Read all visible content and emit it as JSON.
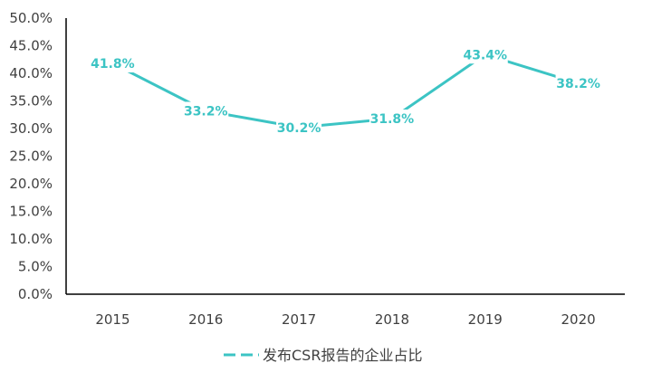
{
  "chart_data": {
    "type": "line",
    "categories": [
      "2015",
      "2016",
      "2017",
      "2018",
      "2019",
      "2020"
    ],
    "series": [
      {
        "name": "发布CSR报告的企业占比",
        "values": [
          41.8,
          33.2,
          30.2,
          31.8,
          43.4,
          38.2
        ],
        "labels": [
          "41.8%",
          "33.2%",
          "30.2%",
          "31.8%",
          "43.4%",
          "38.2%"
        ]
      }
    ],
    "y_ticks": [
      "0.0%",
      "5.0%",
      "10.0%",
      "15.0%",
      "20.0%",
      "25.0%",
      "30.0%",
      "35.0%",
      "40.0%",
      "45.0%",
      "50.0%"
    ],
    "ylim": [
      0,
      50
    ],
    "grid": false,
    "legend_position": "bottom",
    "colors": {
      "series": "#3cc4c4",
      "axis": "#000000",
      "text": "#404040"
    }
  }
}
